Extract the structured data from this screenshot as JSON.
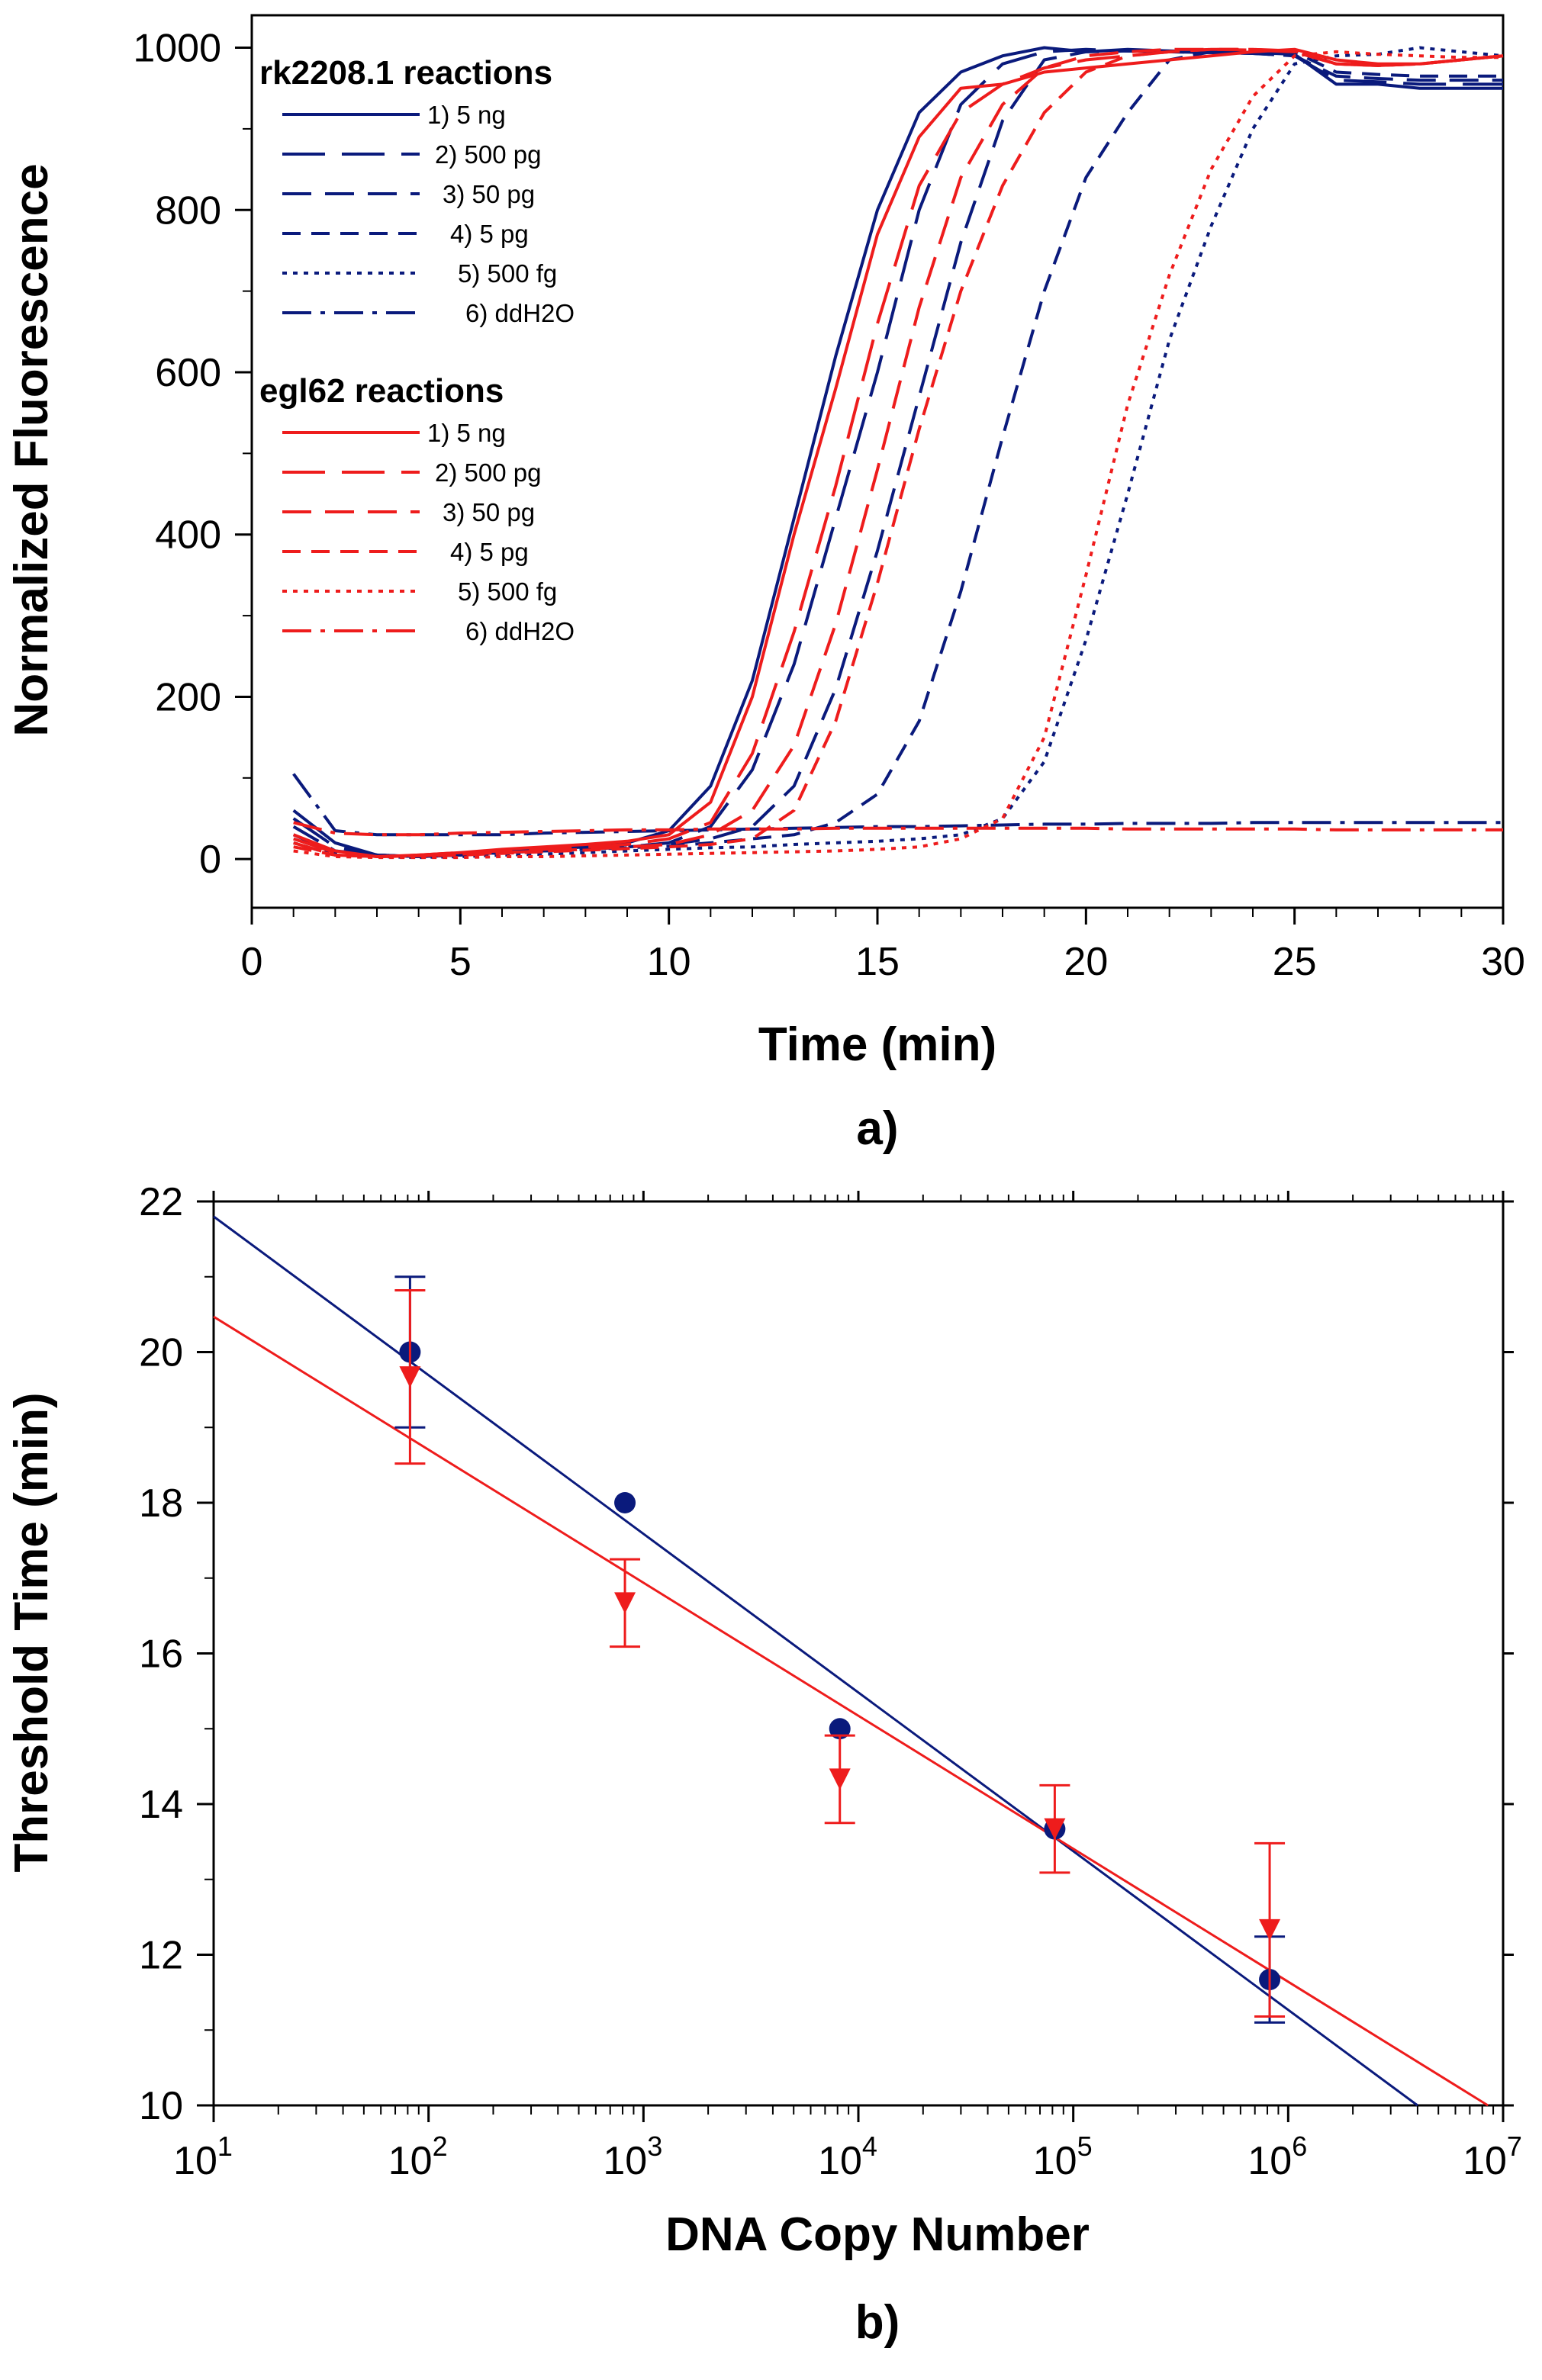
{
  "colors": {
    "rk2208": "#0a1a7c",
    "egl62": "#ee1c1c",
    "axis": "#000000"
  },
  "chart_data": [
    {
      "id": "a",
      "type": "line",
      "panel_label": "a)",
      "xlabel": "Time (min)",
      "ylabel": "Normalized Fluorescence",
      "xlim": [
        0,
        30
      ],
      "ylim": [
        -60,
        1040
      ],
      "xticks": [
        0,
        5,
        10,
        15,
        20,
        25,
        30
      ],
      "yticks": [
        0,
        200,
        400,
        600,
        800,
        1000
      ],
      "legend": {
        "position": "top-left",
        "groups": [
          {
            "title": "rk2208.1 reactions",
            "color": "#0a1a7c",
            "entries": [
              "1) 5 ng",
              "2) 500 pg",
              "3) 50 pg",
              "4) 5 pg",
              "5) 500 fg",
              "6) ddH2O"
            ]
          },
          {
            "title": "egl62 reactions",
            "color": "#ee1c1c",
            "entries": [
              "1) 5 ng",
              "2) 500 pg",
              "3) 50 pg",
              "4) 5 pg",
              "5) 500 fg",
              "6) ddH2O"
            ]
          }
        ]
      },
      "series": [
        {
          "name": "rk2208.1 1) 5 ng",
          "color": "#0a1a7c",
          "dash": "solid",
          "x": [
            1,
            2,
            3,
            4,
            5,
            6,
            7,
            8,
            9,
            10,
            11,
            12,
            13,
            14,
            15,
            16,
            17,
            18,
            19,
            20,
            21,
            22,
            23,
            24,
            25,
            26,
            27,
            28,
            29,
            30
          ],
          "y": [
            60,
            20,
            5,
            3,
            5,
            10,
            12,
            15,
            20,
            35,
            90,
            220,
            420,
            620,
            800,
            920,
            970,
            990,
            1000,
            995,
            998,
            996,
            995,
            994,
            992,
            955,
            955,
            950,
            950,
            950
          ]
        },
        {
          "name": "rk2208.1 2) 500 pg",
          "color": "#0a1a7c",
          "dash": "longdash",
          "x": [
            1,
            2,
            3,
            4,
            5,
            6,
            7,
            8,
            9,
            10,
            11,
            12,
            13,
            14,
            15,
            16,
            17,
            18,
            19,
            20,
            21,
            22,
            23,
            24,
            25,
            26,
            27,
            28,
            29,
            30
          ],
          "y": [
            50,
            15,
            5,
            3,
            5,
            8,
            10,
            12,
            15,
            20,
            40,
            110,
            240,
            420,
            600,
            800,
            930,
            980,
            995,
            998,
            996,
            995,
            994,
            993,
            990,
            960,
            958,
            955,
            955,
            955
          ]
        },
        {
          "name": "rk2208.1 3) 50 pg",
          "color": "#0a1a7c",
          "dash": "dash",
          "x": [
            1,
            2,
            3,
            4,
            5,
            6,
            7,
            8,
            9,
            10,
            11,
            12,
            13,
            14,
            15,
            16,
            17,
            18,
            19,
            20,
            21,
            22,
            23,
            24,
            25,
            26,
            27,
            28,
            29,
            30
          ],
          "y": [
            40,
            10,
            5,
            3,
            5,
            8,
            10,
            12,
            15,
            18,
            25,
            40,
            90,
            210,
            380,
            570,
            760,
            910,
            985,
            995,
            996,
            995,
            994,
            993,
            990,
            965,
            962,
            960,
            960,
            960
          ]
        },
        {
          "name": "rk2208.1 4) 5 pg",
          "color": "#0a1a7c",
          "dash": "shortdash",
          "x": [
            1,
            2,
            3,
            4,
            5,
            6,
            7,
            8,
            9,
            10,
            11,
            12,
            13,
            14,
            15,
            16,
            17,
            18,
            19,
            20,
            21,
            22,
            23,
            24,
            25,
            26,
            27,
            28,
            29,
            30
          ],
          "y": [
            30,
            8,
            5,
            3,
            5,
            8,
            10,
            12,
            14,
            16,
            20,
            25,
            30,
            45,
            80,
            170,
            330,
            520,
            700,
            840,
            920,
            985,
            995,
            996,
            995,
            970,
            967,
            965,
            965,
            965
          ]
        },
        {
          "name": "rk2208.1 5) 500 fg",
          "color": "#0a1a7c",
          "dash": "dot",
          "x": [
            1,
            2,
            3,
            4,
            5,
            6,
            7,
            8,
            9,
            10,
            11,
            12,
            13,
            14,
            15,
            16,
            17,
            18,
            19,
            20,
            21,
            22,
            23,
            24,
            25,
            26,
            27,
            28,
            29,
            30
          ],
          "y": [
            20,
            5,
            3,
            2,
            3,
            5,
            6,
            8,
            10,
            12,
            14,
            15,
            18,
            20,
            22,
            25,
            30,
            50,
            120,
            270,
            450,
            640,
            780,
            900,
            980,
            990,
            992,
            1000,
            995,
            990
          ]
        },
        {
          "name": "rk2208.1 6) ddH2O",
          "color": "#0a1a7c",
          "dash": "dashdot",
          "x": [
            1,
            2,
            3,
            4,
            5,
            6,
            7,
            8,
            9,
            10,
            11,
            12,
            13,
            14,
            15,
            16,
            17,
            18,
            19,
            20,
            21,
            22,
            23,
            24,
            25,
            26,
            27,
            28,
            29,
            30
          ],
          "y": [
            105,
            35,
            30,
            30,
            30,
            30,
            32,
            33,
            34,
            35,
            36,
            37,
            38,
            39,
            40,
            40,
            41,
            42,
            43,
            43,
            44,
            44,
            44,
            45,
            45,
            45,
            45,
            45,
            45,
            45
          ]
        },
        {
          "name": "egl62 1) 5 ng",
          "color": "#ee1c1c",
          "dash": "solid",
          "x": [
            1,
            2,
            3,
            4,
            5,
            6,
            7,
            8,
            9,
            10,
            11,
            12,
            13,
            14,
            15,
            16,
            17,
            18,
            19,
            20,
            21,
            22,
            23,
            24,
            25,
            26,
            27,
            28,
            29,
            30
          ],
          "y": [
            30,
            10,
            3,
            5,
            8,
            12,
            15,
            18,
            22,
            30,
            70,
            200,
            400,
            580,
            770,
            890,
            950,
            955,
            970,
            975,
            980,
            985,
            990,
            995,
            998,
            985,
            980,
            980,
            985,
            990
          ]
        },
        {
          "name": "egl62 2) 500 pg",
          "color": "#ee1c1c",
          "dash": "longdash",
          "x": [
            1,
            2,
            3,
            4,
            5,
            6,
            7,
            8,
            9,
            10,
            11,
            12,
            13,
            14,
            15,
            16,
            17,
            18,
            19,
            20,
            21,
            22,
            23,
            24,
            25,
            26,
            27,
            28,
            29,
            30
          ],
          "y": [
            25,
            8,
            3,
            5,
            8,
            10,
            12,
            15,
            18,
            25,
            45,
            130,
            280,
            460,
            660,
            830,
            920,
            955,
            975,
            985,
            990,
            995,
            998,
            998,
            996,
            980,
            978,
            980,
            985,
            990
          ]
        },
        {
          "name": "egl62 3) 50 pg",
          "color": "#ee1c1c",
          "dash": "dash",
          "x": [
            1,
            2,
            3,
            4,
            5,
            6,
            7,
            8,
            9,
            10,
            11,
            12,
            13,
            14,
            15,
            16,
            17,
            18,
            19,
            20,
            21,
            22,
            23,
            24,
            25,
            26,
            27,
            28,
            29,
            30
          ],
          "y": [
            20,
            5,
            3,
            4,
            6,
            8,
            10,
            12,
            15,
            18,
            30,
            60,
            140,
            290,
            480,
            680,
            840,
            930,
            975,
            990,
            995,
            998,
            998,
            997,
            995,
            980,
            978,
            980,
            985,
            990
          ]
        },
        {
          "name": "egl62 4) 5 pg",
          "color": "#ee1c1c",
          "dash": "shortdash",
          "x": [
            1,
            2,
            3,
            4,
            5,
            6,
            7,
            8,
            9,
            10,
            11,
            12,
            13,
            14,
            15,
            16,
            17,
            18,
            19,
            20,
            21,
            22,
            23,
            24,
            25,
            26,
            27,
            28,
            29,
            30
          ],
          "y": [
            15,
            5,
            3,
            4,
            5,
            7,
            9,
            11,
            13,
            15,
            18,
            25,
            60,
            170,
            340,
            530,
            700,
            830,
            920,
            970,
            990,
            995,
            998,
            998,
            995,
            980,
            978,
            980,
            985,
            990
          ]
        },
        {
          "name": "egl62 5) 500 fg",
          "color": "#ee1c1c",
          "dash": "dot",
          "x": [
            1,
            2,
            3,
            4,
            5,
            6,
            7,
            8,
            9,
            10,
            11,
            12,
            13,
            14,
            15,
            16,
            17,
            18,
            19,
            20,
            21,
            22,
            23,
            24,
            25,
            26,
            27,
            28,
            29,
            30
          ],
          "y": [
            10,
            3,
            2,
            2,
            2,
            3,
            3,
            4,
            5,
            6,
            7,
            8,
            9,
            10,
            12,
            15,
            25,
            50,
            150,
            350,
            560,
            720,
            850,
            940,
            990,
            995,
            992,
            990,
            988,
            988
          ]
        },
        {
          "name": "egl62 6) ddH2O",
          "color": "#ee1c1c",
          "dash": "dashdot",
          "x": [
            1,
            2,
            3,
            4,
            5,
            6,
            7,
            8,
            9,
            10,
            11,
            12,
            13,
            14,
            15,
            16,
            17,
            18,
            19,
            20,
            21,
            22,
            23,
            24,
            25,
            26,
            27,
            28,
            29,
            30
          ],
          "y": [
            45,
            32,
            30,
            30,
            32,
            33,
            34,
            35,
            36,
            36,
            37,
            37,
            37,
            38,
            38,
            38,
            38,
            38,
            38,
            38,
            37,
            37,
            37,
            37,
            37,
            36,
            36,
            36,
            36,
            36
          ]
        }
      ]
    },
    {
      "id": "b",
      "type": "scatter",
      "panel_label": "b)",
      "xlabel": "DNA Copy Number",
      "ylabel": "Threshold Time (min)",
      "xscale": "log",
      "xlim": [
        10,
        10000000
      ],
      "ylim": [
        10,
        22
      ],
      "xtick_bases": [
        "10",
        "10",
        "10",
        "10",
        "10",
        "10",
        "10"
      ],
      "xtick_exps": [
        "1",
        "2",
        "3",
        "4",
        "5",
        "6",
        "7"
      ],
      "yticks": [
        10,
        12,
        14,
        16,
        18,
        20,
        22
      ],
      "series": [
        {
          "name": "rk2208.1",
          "color": "#0a1a7c",
          "marker": "circle",
          "x": [
            82,
            820,
            8200,
            82000,
            820000
          ],
          "y": [
            20.0,
            18.0,
            15.0,
            13.67,
            11.67
          ],
          "err": [
            1.0,
            0.0,
            0.0,
            0.0,
            0.57
          ],
          "fit": {
            "x": [
              10,
              4000000
            ],
            "y": [
              21.8,
              10.0
            ]
          }
        },
        {
          "name": "egl62",
          "color": "#ee1c1c",
          "marker": "triangle-down",
          "x": [
            82,
            820,
            8200,
            82000,
            820000
          ],
          "y": [
            19.67,
            16.67,
            14.33,
            13.67,
            12.33
          ],
          "err": [
            1.15,
            0.58,
            0.58,
            0.58,
            1.15
          ],
          "fit": {
            "x": [
              10,
              8500000
            ],
            "y": [
              20.47,
              10.0
            ]
          }
        }
      ]
    }
  ]
}
